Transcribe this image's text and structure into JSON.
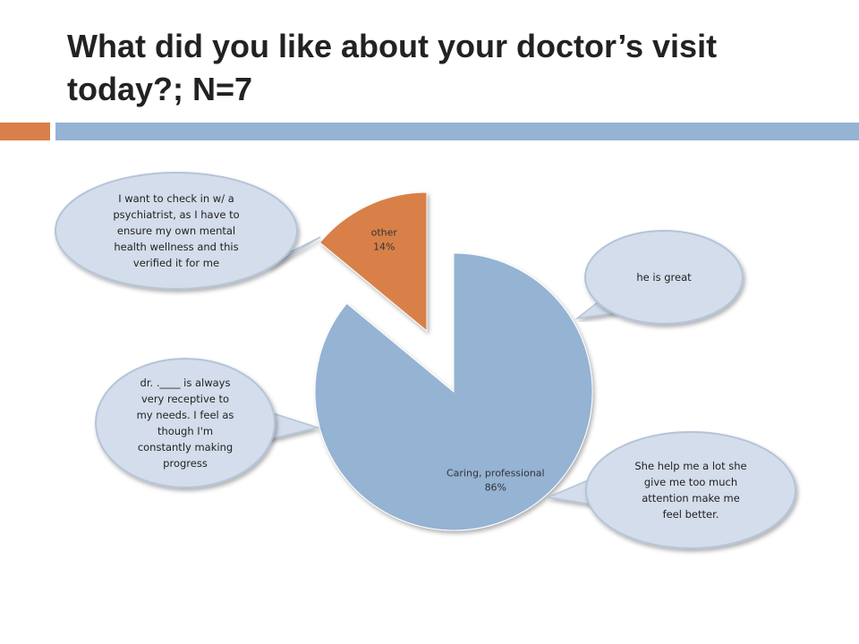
{
  "slide": {
    "title": "What did you like about your doctor’s visit today?; N=7",
    "accent_color": "#D9804A",
    "band_color": "#95B3D3"
  },
  "chart_data": {
    "type": "pie",
    "title": "What did you like about your doctor’s visit today?; N=7",
    "slices": [
      {
        "label": "Caring, professional",
        "value": 86,
        "value_label": "86%",
        "color": "#95B3D3",
        "exploded": true
      },
      {
        "label": "other",
        "value": 14,
        "value_label": "14%",
        "color": "#D9804A",
        "exploded": false
      }
    ],
    "callouts": [
      {
        "text": "I want to check in w/ a psychiatrist, as I have to ensure my own mental health wellness and this verified it for me",
        "points_to": "other"
      },
      {
        "text": "he is great",
        "points_to": "Caring, professional"
      },
      {
        "text": "dr. .____ is always very receptive to my needs. I feel as though I'm constantly making progress",
        "points_to": "Caring, professional"
      },
      {
        "text": "She help me a lot she give me too much attention make me feel better.",
        "points_to": "Caring, professional"
      }
    ]
  }
}
